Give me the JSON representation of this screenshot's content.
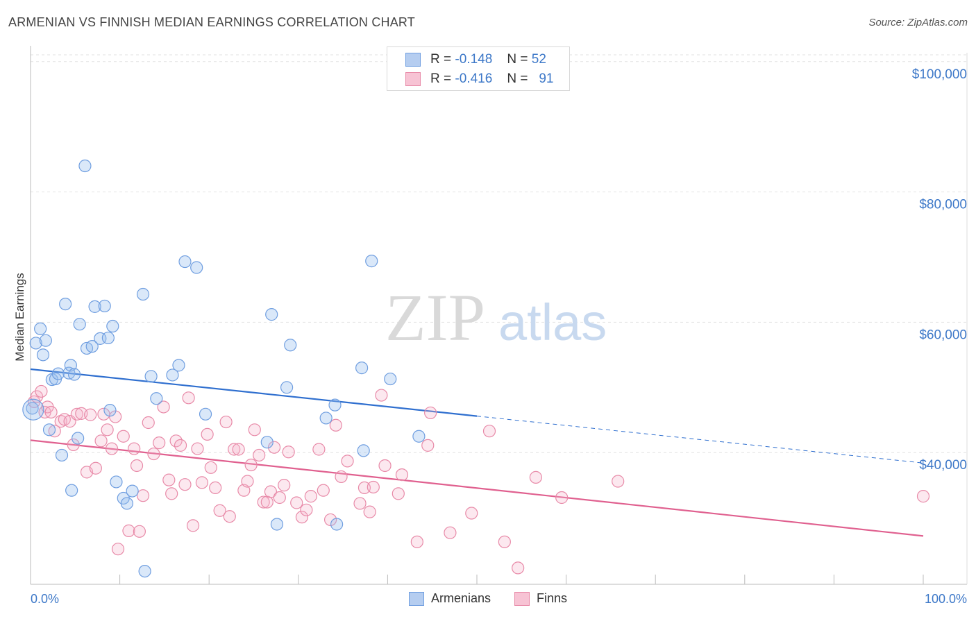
{
  "title": "ARMENIAN VS FINNISH MEDIAN EARNINGS CORRELATION CHART",
  "source": "Source: ZipAtlas.com",
  "watermark": {
    "zip": "ZIP",
    "atlas": "atlas"
  },
  "legend": {
    "rows": [
      {
        "r_label": "R =",
        "r_value": "-0.148",
        "n_label": "N =",
        "n_value": "52"
      },
      {
        "r_label": "R =",
        "r_value": "-0.416",
        "n_label": "N =",
        "n_value": "91"
      }
    ]
  },
  "bottom_legend": {
    "armenians": "Armenians",
    "finns": "Finns"
  },
  "chart_data": {
    "type": "scatter",
    "title": "ARMENIAN VS FINNISH MEDIAN EARNINGS CORRELATION CHART",
    "xlabel": "",
    "ylabel": "Median Earnings",
    "xlim": [
      0,
      100
    ],
    "ylim": [
      20000,
      102000
    ],
    "x_tick_labels": [
      "0.0%",
      "100.0%"
    ],
    "y_ticks": [
      40000,
      60000,
      80000,
      100000
    ],
    "y_tick_labels": [
      "$40,000",
      "$60,000",
      "$80,000",
      "$100,000"
    ],
    "colors": {
      "armenians": "#6f9ee0",
      "finns": "#e88aa8",
      "armenians_line": "#2f6fcf",
      "finns_line": "#e0608f",
      "axis_text": "#3d78c8"
    },
    "series": [
      {
        "name": "Armenians",
        "r": -0.148,
        "n": 52,
        "trend": {
          "x0": 0,
          "y0": 52800,
          "x1": 50,
          "y1": 45600,
          "dashed_to_x": 100,
          "dashed_to_y": 38400
        },
        "points": [
          [
            0.2,
            46800
          ],
          [
            0.6,
            56800
          ],
          [
            1.1,
            59000
          ],
          [
            1.4,
            55000
          ],
          [
            1.7,
            57200
          ],
          [
            2.1,
            43500
          ],
          [
            2.4,
            51200
          ],
          [
            2.8,
            51300
          ],
          [
            3.1,
            52100
          ],
          [
            3.5,
            39600
          ],
          [
            3.9,
            62800
          ],
          [
            4.3,
            52200
          ],
          [
            4.5,
            53400
          ],
          [
            4.9,
            52000
          ],
          [
            5.3,
            42200
          ],
          [
            5.5,
            59700
          ],
          [
            6.1,
            84000
          ],
          [
            6.3,
            56000
          ],
          [
            6.9,
            56300
          ],
          [
            7.2,
            62400
          ],
          [
            7.8,
            57500
          ],
          [
            8.3,
            62500
          ],
          [
            8.7,
            57600
          ],
          [
            8.9,
            46500
          ],
          [
            9.2,
            59400
          ],
          [
            9.6,
            35500
          ],
          [
            10.4,
            33000
          ],
          [
            10.8,
            32200
          ],
          [
            11.4,
            34100
          ],
          [
            12.6,
            64300
          ],
          [
            12.8,
            21800
          ],
          [
            13.5,
            51700
          ],
          [
            14.1,
            48300
          ],
          [
            15.9,
            51900
          ],
          [
            16.6,
            53400
          ],
          [
            17.3,
            69300
          ],
          [
            18.6,
            68400
          ],
          [
            19.6,
            45900
          ],
          [
            26.5,
            41600
          ],
          [
            27.0,
            61200
          ],
          [
            27.6,
            29000
          ],
          [
            28.7,
            50000
          ],
          [
            29.1,
            56500
          ],
          [
            33.1,
            45300
          ],
          [
            34.3,
            29000
          ],
          [
            34.1,
            47300
          ],
          [
            37.1,
            53000
          ],
          [
            37.3,
            40300
          ],
          [
            38.2,
            69400
          ],
          [
            40.3,
            51300
          ],
          [
            43.5,
            42500
          ],
          [
            4.6,
            34200
          ]
        ]
      },
      {
        "name": "Finns",
        "r": -0.416,
        "n": 91,
        "trend": {
          "x0": 0,
          "y0": 41900,
          "x1": 100,
          "y1": 27200
        },
        "points": [
          [
            0.4,
            47800
          ],
          [
            0.7,
            48600
          ],
          [
            1.2,
            49400
          ],
          [
            1.6,
            46200
          ],
          [
            1.9,
            47000
          ],
          [
            2.3,
            46200
          ],
          [
            2.7,
            43300
          ],
          [
            3.4,
            44800
          ],
          [
            3.8,
            45100
          ],
          [
            4.4,
            44800
          ],
          [
            4.8,
            41200
          ],
          [
            5.2,
            45900
          ],
          [
            5.7,
            46000
          ],
          [
            6.3,
            37000
          ],
          [
            6.7,
            45800
          ],
          [
            7.3,
            37600
          ],
          [
            7.9,
            41800
          ],
          [
            8.2,
            45900
          ],
          [
            8.6,
            43500
          ],
          [
            9.1,
            40600
          ],
          [
            9.5,
            45500
          ],
          [
            9.8,
            25200
          ],
          [
            10.4,
            42500
          ],
          [
            11.0,
            28000
          ],
          [
            11.6,
            40600
          ],
          [
            11.9,
            38000
          ],
          [
            12.2,
            27900
          ],
          [
            12.6,
            33400
          ],
          [
            13.2,
            44600
          ],
          [
            13.8,
            39800
          ],
          [
            14.4,
            41500
          ],
          [
            14.9,
            47000
          ],
          [
            15.5,
            35800
          ],
          [
            15.8,
            33700
          ],
          [
            16.3,
            41800
          ],
          [
            16.8,
            41100
          ],
          [
            17.3,
            35100
          ],
          [
            17.7,
            48400
          ],
          [
            18.2,
            28800
          ],
          [
            18.7,
            40600
          ],
          [
            19.2,
            35400
          ],
          [
            19.8,
            42800
          ],
          [
            20.2,
            37700
          ],
          [
            20.7,
            34600
          ],
          [
            21.2,
            31100
          ],
          [
            21.9,
            44700
          ],
          [
            22.3,
            30200
          ],
          [
            22.8,
            40500
          ],
          [
            23.3,
            40500
          ],
          [
            23.9,
            34200
          ],
          [
            24.3,
            35600
          ],
          [
            24.7,
            38100
          ],
          [
            25.1,
            43500
          ],
          [
            25.6,
            39600
          ],
          [
            26.1,
            32400
          ],
          [
            26.5,
            32400
          ],
          [
            26.9,
            34000
          ],
          [
            27.3,
            40800
          ],
          [
            27.9,
            33100
          ],
          [
            28.4,
            35000
          ],
          [
            28.9,
            40100
          ],
          [
            29.8,
            32300
          ],
          [
            30.4,
            30100
          ],
          [
            30.9,
            31200
          ],
          [
            31.4,
            33300
          ],
          [
            32.3,
            40500
          ],
          [
            32.8,
            34200
          ],
          [
            33.6,
            29700
          ],
          [
            34.2,
            44200
          ],
          [
            34.8,
            36300
          ],
          [
            35.5,
            38700
          ],
          [
            36.9,
            32200
          ],
          [
            37.4,
            34600
          ],
          [
            38.0,
            30900
          ],
          [
            38.4,
            34700
          ],
          [
            39.3,
            48800
          ],
          [
            39.7,
            38000
          ],
          [
            41.2,
            33700
          ],
          [
            41.6,
            36600
          ],
          [
            43.3,
            26300
          ],
          [
            44.5,
            41100
          ],
          [
            44.8,
            46100
          ],
          [
            47.0,
            27700
          ],
          [
            49.4,
            30700
          ],
          [
            51.4,
            43300
          ],
          [
            53.1,
            26300
          ],
          [
            54.6,
            22300
          ],
          [
            56.6,
            36200
          ],
          [
            59.5,
            33100
          ],
          [
            65.8,
            35600
          ],
          [
            100.0,
            33300
          ]
        ]
      }
    ]
  }
}
